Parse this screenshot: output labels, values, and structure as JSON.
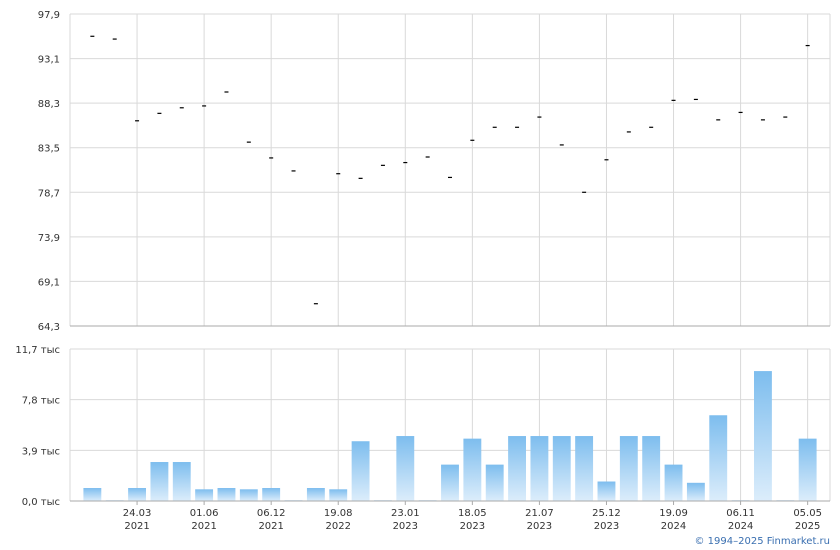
{
  "chart_data": [
    {
      "type": "scatter",
      "color": "#000000",
      "grid": true,
      "ylim": [
        64.3,
        97.9
      ],
      "yticks": [
        {
          "value": 64.3,
          "label": "64,3"
        },
        {
          "value": 69.1,
          "label": "69,1"
        },
        {
          "value": 73.9,
          "label": "73,9"
        },
        {
          "value": 78.7,
          "label": "78,7"
        },
        {
          "value": 83.5,
          "label": "83,5"
        },
        {
          "value": 88.3,
          "label": "88,3"
        },
        {
          "value": 93.1,
          "label": "93,1"
        },
        {
          "value": 97.9,
          "label": "97,9"
        }
      ],
      "values": [
        95.5,
        95.2,
        86.4,
        87.2,
        87.8,
        88.0,
        89.5,
        84.1,
        82.4,
        81.0,
        66.7,
        80.7,
        80.2,
        81.6,
        81.9,
        82.5,
        80.3,
        84.3,
        85.7,
        85.7,
        86.8,
        83.8,
        78.7,
        82.2,
        85.2,
        85.7,
        88.6,
        88.7,
        86.5,
        87.3,
        86.5,
        86.8,
        94.5
      ]
    },
    {
      "type": "bar",
      "color": "#7dbdee",
      "grid": true,
      "ylim": [
        0,
        11.7
      ],
      "yticks": [
        {
          "value": 0,
          "label": "0,0 тыс"
        },
        {
          "value": 3.9,
          "label": "3,9 тыс"
        },
        {
          "value": 7.8,
          "label": "7,8 тыс"
        },
        {
          "value": 11.7,
          "label": "11,7 тыс"
        }
      ],
      "categories": [
        null,
        null,
        [
          "24.03",
          "2021"
        ],
        null,
        null,
        [
          "01.06",
          "2021"
        ],
        null,
        null,
        [
          "06.12",
          "2021"
        ],
        null,
        null,
        [
          "19.08",
          "2022"
        ],
        null,
        null,
        [
          "23.01",
          "2023"
        ],
        null,
        null,
        [
          "18.05",
          "2023"
        ],
        null,
        null,
        [
          "21.07",
          "2023"
        ],
        null,
        null,
        [
          "25.12",
          "2023"
        ],
        null,
        null,
        [
          "19.09",
          "2024"
        ],
        null,
        null,
        [
          "06.11",
          "2024"
        ],
        null,
        null,
        [
          "05.05",
          "2025"
        ]
      ],
      "values": [
        1.0,
        0.05,
        1.0,
        3.0,
        3.0,
        0.9,
        1.0,
        0.9,
        1.0,
        0.05,
        1.0,
        0.9,
        4.6,
        0.05,
        5.0,
        0.05,
        2.8,
        4.8,
        2.8,
        5.0,
        5.0,
        5.0,
        5.0,
        1.5,
        5.0,
        5.0,
        2.8,
        1.4,
        6.6,
        0.05,
        10.0,
        0.05,
        4.8
      ]
    }
  ],
  "credit": "© 1994–2025 Finmarket.ru"
}
